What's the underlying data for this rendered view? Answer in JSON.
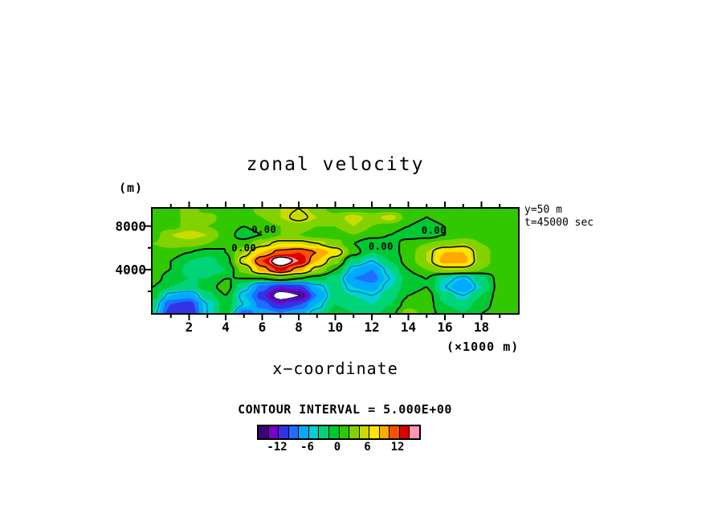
{
  "chart_data": {
    "type": "heatmap",
    "title": "zonal velocity",
    "xlabel": "x−coordinate",
    "x_unit": "(×1000 m)",
    "y_unit": "(m)",
    "x_range": [
      0,
      20
    ],
    "y_range": [
      0,
      9600
    ],
    "x_ticks": [
      2,
      4,
      6,
      8,
      10,
      12,
      14,
      16,
      18
    ],
    "y_ticks": [
      8000,
      4000
    ],
    "annotations": {
      "side": [
        "y=50 m",
        "t=45000 sec"
      ],
      "level_labels": [
        {
          "text": "0.00",
          "x": 6.1,
          "y": 7700
        },
        {
          "text": "0.00",
          "x": 5.0,
          "y": 6000
        },
        {
          "text": "0.00",
          "x": 12.5,
          "y": 6100
        },
        {
          "text": "0.00",
          "x": 15.4,
          "y": 7600
        }
      ]
    },
    "contours": {
      "caption": "CONTOUR INTERVAL = 5.000E+00",
      "interval": 5,
      "solid_levels": [
        0,
        5,
        10,
        15
      ],
      "dashed_levels": [
        -5,
        -10,
        -15
      ]
    },
    "colorbar": {
      "min": -16,
      "max": 16,
      "step": 2,
      "tick_values": [
        -12,
        -6,
        0,
        6,
        12
      ]
    },
    "colors": {
      "contour_solid": "#000000",
      "contour_dashed": "#1e46dc",
      "out_of_range": "#ffffff",
      "bins": [
        "#3c0078",
        "#7800c8",
        "#3232e6",
        "#1e6eff",
        "#00aaff",
        "#00d2d2",
        "#00d478",
        "#00c832",
        "#32c800",
        "#82d200",
        "#c8dc00",
        "#ffe600",
        "#ffaa00",
        "#ff5000",
        "#dc0000",
        "#ff96aa"
      ]
    },
    "grid": {
      "comment": "zonal velocity field (m/s); rows top(y=9600) to bottom(y=0), cols x=0..20",
      "nx": 21,
      "ny": 13,
      "values": [
        [
          1,
          1,
          3,
          1,
          1,
          1,
          3,
          4,
          5,
          3,
          1,
          1,
          1,
          1,
          1,
          1,
          1,
          1,
          1,
          1,
          1
        ],
        [
          1,
          1,
          3,
          3,
          1,
          1,
          2,
          4,
          6,
          4,
          3,
          5,
          3,
          5,
          1,
          0,
          1,
          1,
          1,
          1,
          1
        ],
        [
          1,
          1,
          3,
          2,
          1,
          0,
          1,
          2,
          3,
          2,
          2,
          4,
          2,
          1,
          0,
          -1,
          0,
          1,
          1,
          1,
          1
        ],
        [
          1,
          4,
          5,
          4,
          1,
          -1,
          0,
          2,
          2,
          1,
          1,
          2,
          1,
          0,
          -1,
          -1,
          0,
          1,
          1,
          1,
          1
        ],
        [
          2,
          3,
          3,
          2,
          0,
          1,
          4,
          6,
          6,
          5,
          3,
          0,
          -2,
          -1,
          1,
          2,
          3,
          4,
          2,
          1,
          1
        ],
        [
          1,
          1,
          0,
          -1,
          0,
          4,
          8,
          11,
          12,
          10,
          7,
          1,
          -2,
          -1,
          1,
          4,
          8,
          8,
          3,
          1,
          1
        ],
        [
          1,
          0,
          -2,
          -3,
          -1,
          6,
          12,
          18,
          14,
          8,
          3,
          -3,
          -5,
          -2,
          1,
          4,
          9,
          9,
          3,
          1,
          1
        ],
        [
          1,
          0,
          -3,
          -4,
          -2,
          3,
          9,
          13,
          9,
          4,
          0,
          -6,
          -8,
          -4,
          0,
          2,
          4,
          4,
          2,
          1,
          1
        ],
        [
          1,
          -1,
          -2,
          -2,
          0,
          0,
          0,
          2,
          0,
          -1,
          -3,
          -8,
          -9,
          -5,
          -1,
          0,
          -4,
          -6,
          -3,
          1,
          1
        ],
        [
          0,
          -2,
          -3,
          -1,
          1,
          -4,
          -9,
          -12,
          -11,
          -6,
          -3,
          -6,
          -7,
          -4,
          -1,
          0,
          -5,
          -8,
          -4,
          1,
          1
        ],
        [
          -1,
          -6,
          -7,
          -3,
          0,
          -6,
          -11,
          -18,
          -16,
          -8,
          -3,
          -4,
          -5,
          -3,
          0,
          1,
          -3,
          -5,
          -2,
          1,
          1
        ],
        [
          -3,
          -10,
          -11,
          -5,
          -1,
          -5,
          -9,
          -12,
          -10,
          -6,
          -2,
          -3,
          -4,
          -2,
          1,
          1,
          -2,
          -3,
          -1,
          1,
          1
        ],
        [
          -4,
          -11,
          -12,
          -5,
          -1,
          -9,
          -7,
          -8,
          -7,
          -4,
          -1,
          -2,
          -3,
          -1,
          3,
          1,
          -1,
          -2,
          0,
          1,
          1
        ]
      ]
    }
  }
}
